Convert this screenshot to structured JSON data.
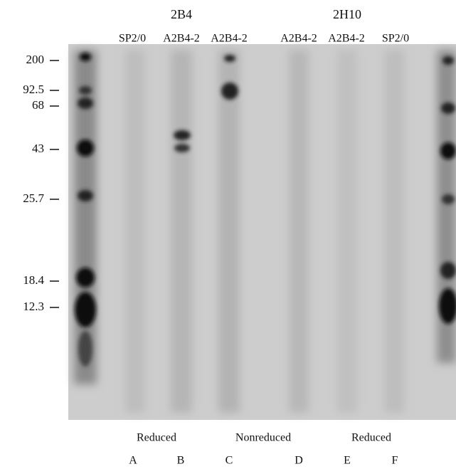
{
  "figure": {
    "groups": [
      "2B4",
      "2H10"
    ],
    "lanes": [
      "SP2/0",
      "A2B4-2",
      "A2B4-2",
      "A2B4-2",
      "A2B4-2",
      "SP2/0"
    ],
    "markers": [
      "200",
      "92.5",
      "68",
      "43",
      "25.7",
      "18.4",
      "12.3"
    ],
    "conditions": [
      "Reduced",
      "Nonreduced",
      "Reduced"
    ],
    "lane_letters": [
      "A",
      "B",
      "C",
      "D",
      "E",
      "F"
    ]
  }
}
